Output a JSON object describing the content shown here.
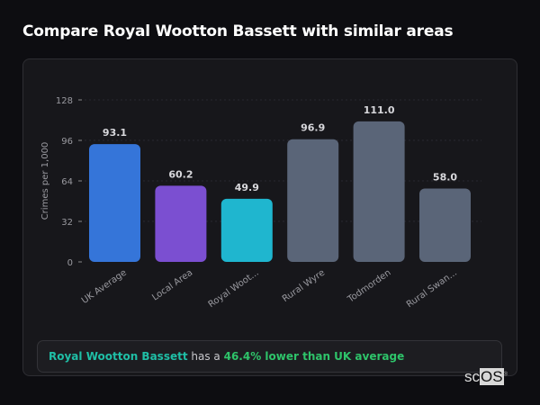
{
  "title": "Compare Royal Wootton Bassett with similar areas",
  "chart_data": {
    "type": "bar",
    "ylabel": "Crimes per 1,000",
    "ylim": [
      0,
      128
    ],
    "yticks": [
      0,
      32,
      64,
      96,
      128
    ],
    "grid": true,
    "categories": [
      "UK Average",
      "Local Area",
      "Royal Woot...",
      "Rural Wyre",
      "Todmorden",
      "Rural Swan..."
    ],
    "values": [
      93.1,
      60.2,
      49.9,
      96.9,
      111.0,
      58.0
    ],
    "data_labels": [
      "93.1",
      "60.2",
      "49.9",
      "96.9",
      "111.0",
      "58.0"
    ],
    "colors": [
      "#3575d9",
      "#7b4fd1",
      "#1fb6cf",
      "#5a6578",
      "#5a6578",
      "#5a6578"
    ]
  },
  "summary": {
    "area": "Royal Wootton Bassett",
    "connector": " has a ",
    "comparison": "46.4% lower than UK average"
  },
  "logo": {
    "text_a": "sc",
    "text_b": "OS",
    "mark": "®"
  }
}
